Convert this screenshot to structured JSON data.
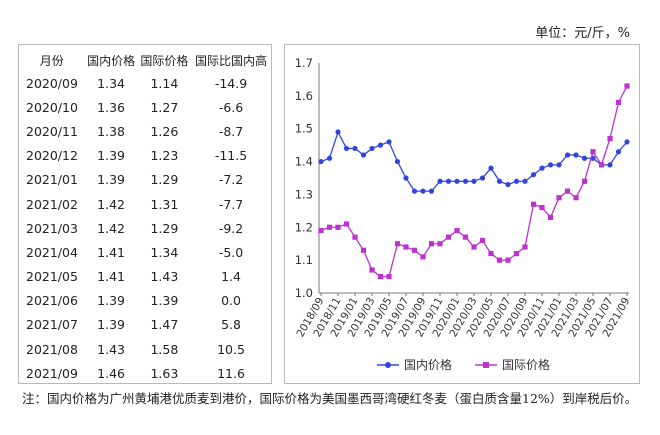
{
  "unit_label": "单位：元/斤，%",
  "table": {
    "headers": [
      "月份",
      "国内价格",
      "国际价格",
      "国际比国内高"
    ],
    "rows": [
      [
        "2020/09",
        "1.34",
        "1.14",
        "-14.9"
      ],
      [
        "2020/10",
        "1.36",
        "1.27",
        "-6.6"
      ],
      [
        "2020/11",
        "1.38",
        "1.26",
        "-8.7"
      ],
      [
        "2020/12",
        "1.39",
        "1.23",
        "-11.5"
      ],
      [
        "2021/01",
        "1.39",
        "1.29",
        "-7.2"
      ],
      [
        "2021/02",
        "1.42",
        "1.31",
        "-7.7"
      ],
      [
        "2021/03",
        "1.42",
        "1.29",
        "-9.2"
      ],
      [
        "2021/04",
        "1.41",
        "1.34",
        "-5.0"
      ],
      [
        "2021/05",
        "1.41",
        "1.43",
        "1.4"
      ],
      [
        "2021/06",
        "1.39",
        "1.39",
        "0.0"
      ],
      [
        "2021/07",
        "1.39",
        "1.47",
        "5.8"
      ],
      [
        "2021/08",
        "1.43",
        "1.58",
        "10.5"
      ],
      [
        "2021/09",
        "1.46",
        "1.63",
        "11.6"
      ]
    ]
  },
  "chart_data": {
    "type": "line",
    "ylim": [
      1.0,
      1.7
    ],
    "yticks": [
      "1.0",
      "1.1",
      "1.2",
      "1.3",
      "1.4",
      "1.5",
      "1.6",
      "1.7"
    ],
    "x": [
      "2018/09",
      "2018/10",
      "2018/11",
      "2018/12",
      "2019/01",
      "2019/02",
      "2019/03",
      "2019/04",
      "2019/05",
      "2019/06",
      "2019/07",
      "2019/08",
      "2019/09",
      "2019/10",
      "2019/11",
      "2019/12",
      "2020/01",
      "2020/02",
      "2020/03",
      "2020/04",
      "2020/05",
      "2020/06",
      "2020/07",
      "2020/08",
      "2020/09",
      "2020/10",
      "2020/11",
      "2020/12",
      "2021/01",
      "2021/02",
      "2021/03",
      "2021/04",
      "2021/05",
      "2021/06",
      "2021/07",
      "2021/08",
      "2021/09"
    ],
    "xtick_labels": [
      "2018/09",
      "2018/11",
      "2019/01",
      "2019/03",
      "2019/05",
      "2019/07",
      "2019/09",
      "2019/11",
      "2020/01",
      "2020/03",
      "2020/05",
      "2020/07",
      "2020/09",
      "2020/11",
      "2021/01",
      "2021/03",
      "2021/05",
      "2021/07",
      "2021/09"
    ],
    "grid": false,
    "legend_position": "bottom",
    "series": [
      {
        "name": "国内价格",
        "color": "#3344dd",
        "marker": "circle",
        "values": [
          1.4,
          1.41,
          1.49,
          1.44,
          1.44,
          1.42,
          1.44,
          1.45,
          1.46,
          1.4,
          1.35,
          1.31,
          1.31,
          1.31,
          1.34,
          1.34,
          1.34,
          1.34,
          1.34,
          1.35,
          1.38,
          1.34,
          1.33,
          1.34,
          1.34,
          1.36,
          1.38,
          1.39,
          1.39,
          1.42,
          1.42,
          1.41,
          1.41,
          1.39,
          1.39,
          1.43,
          1.46
        ]
      },
      {
        "name": "国际价格",
        "color": "#bb33cc",
        "marker": "square",
        "values": [
          1.19,
          1.2,
          1.2,
          1.21,
          1.17,
          1.13,
          1.07,
          1.05,
          1.05,
          1.15,
          1.14,
          1.13,
          1.11,
          1.15,
          1.15,
          1.17,
          1.19,
          1.17,
          1.14,
          1.16,
          1.12,
          1.1,
          1.1,
          1.12,
          1.14,
          1.27,
          1.26,
          1.23,
          1.29,
          1.31,
          1.29,
          1.34,
          1.43,
          1.39,
          1.47,
          1.58,
          1.63
        ]
      }
    ]
  },
  "note": "注：国内价格为广州黄埔港优质麦到港价，国际价格为美国墨西哥湾硬红冬麦（蛋白质含量12%）到岸税后价。"
}
